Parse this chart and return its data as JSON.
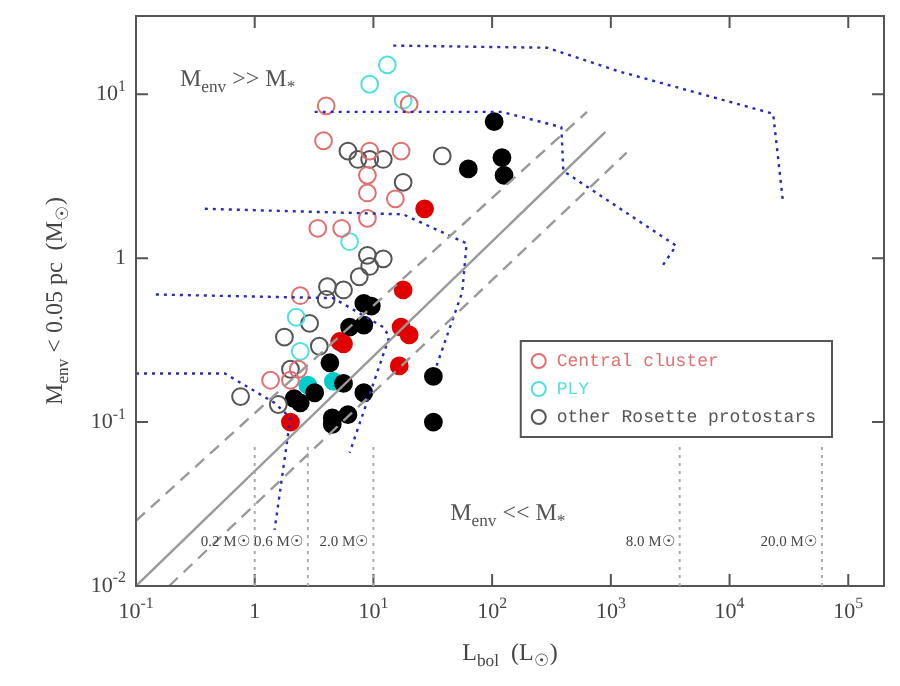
{
  "chart_data": {
    "type": "scatter",
    "xlabel": "L$_{bol}$  (L$_{☉}$)",
    "ylabel": "M$_{env}$ < 0.05 pc  (M$_{☉}$)",
    "log": "xy",
    "xlim": [
      0.1,
      200000
    ],
    "ylim": [
      0.01,
      30
    ],
    "xticks": [
      {
        "value": 0.1,
        "label": "10$^{-1}$"
      },
      1,
      {
        "value": 10,
        "label": "10$^{1}$"
      },
      {
        "value": 100,
        "label": "10$^{2}$"
      },
      {
        "value": 1000,
        "label": "10$^{3}$"
      },
      {
        "value": 10000,
        "label": "10$^{4}$"
      },
      {
        "value": 100000,
        "label": "10$^{5}$"
      }
    ],
    "yticks": [
      {
        "value": 0.01,
        "label": "10$^{-2}$"
      },
      {
        "value": 0.1,
        "label": "10$^{-1}$"
      },
      1,
      {
        "value": 10,
        "label": "10$^{1}$"
      }
    ],
    "legend": "right",
    "annotations": [
      "M$_{env}$ >> M$_{*}$",
      "M$_{env}$ << M$_{*}$"
    ],
    "ref_lines": [
      {
        "axis": "x",
        "value": 1,
        "label": "0.2 M☉",
        "color": "#aaaaaa",
        "line_style": "dotted"
      },
      {
        "axis": "x",
        "value": 2.8,
        "label": "0.6 M☉",
        "color": "#aaaaaa",
        "line_style": "dotted"
      },
      {
        "axis": "x",
        "value": 10,
        "label": "2.0 M☉",
        "color": "#aaaaaa",
        "line_style": "dotted"
      },
      {
        "axis": "x",
        "value": 3800,
        "label": "8.0 M☉",
        "color": "#aaaaaa",
        "line_style": "dotted"
      },
      {
        "axis": "x",
        "value": 60000,
        "label": "20.0 M☉",
        "color": "#aaaaaa",
        "line_style": "dotted"
      }
    ],
    "series": [
      {
        "type": "line",
        "color": "#999999",
        "line_style": "solid",
        "x": [
          0.1,
          900
        ],
        "values": [
          0.01,
          5.9
        ]
      },
      {
        "type": "line",
        "color": "#999999",
        "line_style": "dashed",
        "x": [
          0.1,
          630
        ],
        "values": [
          0.025,
          7.8
        ]
      },
      {
        "type": "line",
        "color": "#999999",
        "line_style": "dashed",
        "x": [
          0.19,
          1360
        ],
        "values": [
          0.01,
          4.4
        ]
      },
      {
        "type": "line",
        "color": "#2a2ab8",
        "line_style": "dotted",
        "x": [
          14.7,
          293,
          1122,
          23300,
          28200
        ],
        "values": [
          19.8,
          19.2,
          13.9,
          7.6,
          2.2
        ]
      },
      {
        "type": "line",
        "color": "#2a2ab8",
        "line_style": "dotted",
        "x": [
          3.2,
          121,
          383,
          398,
          3550,
          2610
        ],
        "values": [
          7.8,
          7.8,
          6.3,
          3.4,
          1.19,
          0.86
        ]
      },
      {
        "type": "line",
        "color": "#2a2ab8",
        "line_style": "dotted",
        "x": [
          0.38,
          17.8,
          61,
          56,
          34
        ],
        "values": [
          2.0,
          1.85,
          1.23,
          0.62,
          0.22
        ]
      },
      {
        "type": "line",
        "color": "#2a2ab8",
        "line_style": "dotted",
        "x": [
          0.147,
          4.6,
          12.1,
          13.6,
          6.3
        ],
        "values": [
          0.6,
          0.57,
          0.38,
          0.33,
          0.065
        ]
      },
      {
        "type": "line",
        "color": "#2a2ab8",
        "line_style": "dotted",
        "x": [
          0.1,
          0.56,
          1.47,
          2.0,
          1.47
        ],
        "values": [
          0.198,
          0.198,
          0.131,
          0.106,
          0.022
        ]
      },
      {
        "marker": "circle",
        "name": "Central cluster",
        "color": "#e07070",
        "x": [
          4.0,
          3.8,
          17.1,
          9.3,
          8.9,
          8.9,
          15.3,
          8.9,
          3.4,
          5.4,
          2.42,
          20,
          1.36,
          2.33,
          2.0
        ],
        "values": [
          8.5,
          5.2,
          4.5,
          4.5,
          3.2,
          2.5,
          2.3,
          1.75,
          1.52,
          1.52,
          0.59,
          8.7,
          0.18,
          0.21,
          0.18
        ]
      },
      {
        "marker": "circle",
        "name": "PLY",
        "color": "#50e0e0",
        "x": [
          9.3,
          13.1,
          17.8,
          6.3,
          2.24,
          2.42
        ],
        "values": [
          11.5,
          15.1,
          9.2,
          1.26,
          0.436,
          0.27
        ]
      },
      {
        "marker": "circle",
        "name": "other Rosette protostars",
        "color": "#555555",
        "x": [
          6.1,
          7.4,
          9.3,
          12.1,
          17.8,
          38,
          8.9,
          12.1,
          9.3,
          7.6,
          4.1,
          5.6,
          4.0,
          2.9,
          0.76,
          1.78,
          2.0,
          3.5,
          1.58
        ],
        "values": [
          4.5,
          4.0,
          4.0,
          4.0,
          2.9,
          4.2,
          1.04,
          0.99,
          0.89,
          0.77,
          0.67,
          0.64,
          0.56,
          0.4,
          0.143,
          0.33,
          0.21,
          0.29,
          0.128
        ]
      },
      {
        "marker": "circle",
        "color": "#e00000",
        "x": [
          27,
          17.8,
          2.0,
          17.1,
          20,
          16.5,
          5.6,
          5.2
        ],
        "values": [
          2.0,
          0.64,
          0.1,
          0.38,
          0.34,
          0.22,
          0.3,
          0.31
        ]
      },
      {
        "marker": "circle",
        "color": "#000000",
        "x": [
          8.3,
          9.6,
          104,
          63,
          121,
          126,
          4.3,
          2.15,
          2.42,
          3.2,
          4.5,
          4.5,
          6.1,
          8.3,
          5.6,
          32,
          32,
          6.3,
          8.3
        ],
        "values": [
          0.53,
          0.51,
          6.8,
          3.5,
          4.1,
          3.2,
          0.23,
          0.139,
          0.131,
          0.151,
          0.106,
          0.097,
          0.111,
          0.151,
          0.172,
          0.19,
          0.1,
          0.38,
          0.39
        ]
      },
      {
        "marker": "circle",
        "color": "#00cccc",
        "x": [
          2.8,
          4.6
        ],
        "values": [
          0.168,
          0.177
        ]
      }
    ]
  }
}
